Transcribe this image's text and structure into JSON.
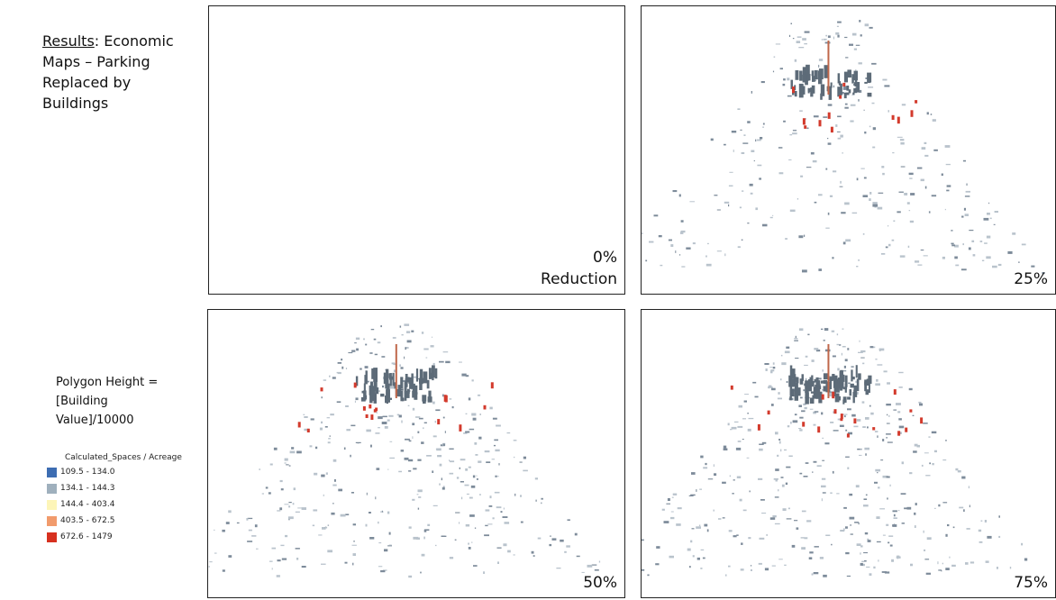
{
  "title": {
    "underlined": "Results",
    "rest": ": Economic Maps – Parking Replaced by Buildings"
  },
  "note": "Polygon Height = [Building Value]/10000",
  "legend": {
    "title": "Calculated_Spaces / Acreage",
    "items": [
      {
        "label": "109.5 - 134.0",
        "color": "#3d6db2"
      },
      {
        "label": "134.1 - 144.3",
        "color": "#9fb0bd"
      },
      {
        "label": "144.4 - 403.4",
        "color": "#fdf5b8"
      },
      {
        "label": "403.5 - 672.5",
        "color": "#f19b6c"
      },
      {
        "label": "672.6 - 1479",
        "color": "#d7301f"
      }
    ]
  },
  "panels": [
    {
      "label": "0%",
      "sublabel": "Reduction"
    },
    {
      "label": "25%"
    },
    {
      "label": "50%"
    },
    {
      "label": "75%"
    }
  ]
}
